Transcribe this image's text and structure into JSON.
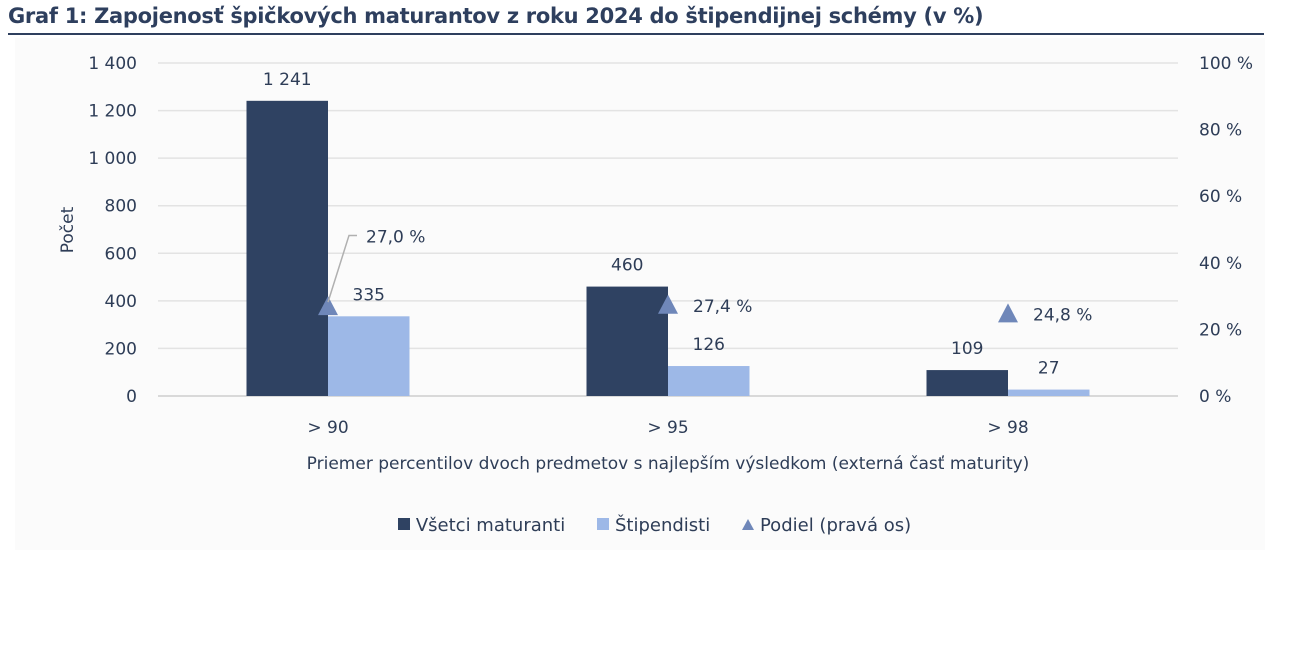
{
  "title": "Graf 1: Zapojenosť špičkových maturantov z roku 2024 do štipendijnej schémy (v %)",
  "colors": {
    "all_students": "#2f4262",
    "scholars": "#9db8e7",
    "share": "#6f87b9",
    "grid": "#e3e3e3",
    "text": "#2e3d57"
  },
  "axes": {
    "left_label": "Počet",
    "left_ticks": [
      "0",
      "200",
      "400",
      "600",
      "800",
      "1 000",
      "1 200",
      "1 400"
    ],
    "right_ticks": [
      "0 %",
      "20 %",
      "40 %",
      "60 %",
      "80 %",
      "100 %"
    ],
    "x_label": "Priemer percentilov dvoch predmetov s najlepším výsledkom (externá časť maturity)",
    "x_ticks": [
      "> 90",
      "> 95",
      "> 98"
    ]
  },
  "data_labels": {
    "all": [
      "1 241",
      "460",
      "109"
    ],
    "scholars": [
      "335",
      "126",
      "27"
    ],
    "share": [
      "27,0 %",
      "27,4 %",
      "24,8 %"
    ]
  },
  "legend": {
    "all": "Všetci maturanti",
    "scholars": "Štipendisti",
    "share": "Podiel (pravá os)"
  },
  "chart_data": {
    "type": "bar",
    "title": "Graf 1: Zapojenosť špičkových maturantov z roku 2024 do štipendijnej schémy (v %)",
    "categories": [
      "> 90",
      "> 95",
      "> 98"
    ],
    "series": [
      {
        "name": "Všetci maturanti",
        "type": "bar",
        "axis": "left",
        "values": [
          1241,
          460,
          109
        ]
      },
      {
        "name": "Štipendisti",
        "type": "bar",
        "axis": "left",
        "values": [
          335,
          126,
          27
        ]
      },
      {
        "name": "Podiel (pravá os)",
        "type": "scatter",
        "marker": "triangle",
        "axis": "right",
        "values": [
          27.0,
          27.4,
          24.8
        ]
      }
    ],
    "xlabel": "Priemer percentilov dvoch predmetov s najlepším výsledkom (externá časť maturity)",
    "ylabel": "Počet",
    "ylim": [
      0,
      1400
    ],
    "y2label": "",
    "y2lim": [
      0,
      100
    ],
    "y2_unit": "%",
    "grid": true,
    "legend_position": "bottom"
  }
}
